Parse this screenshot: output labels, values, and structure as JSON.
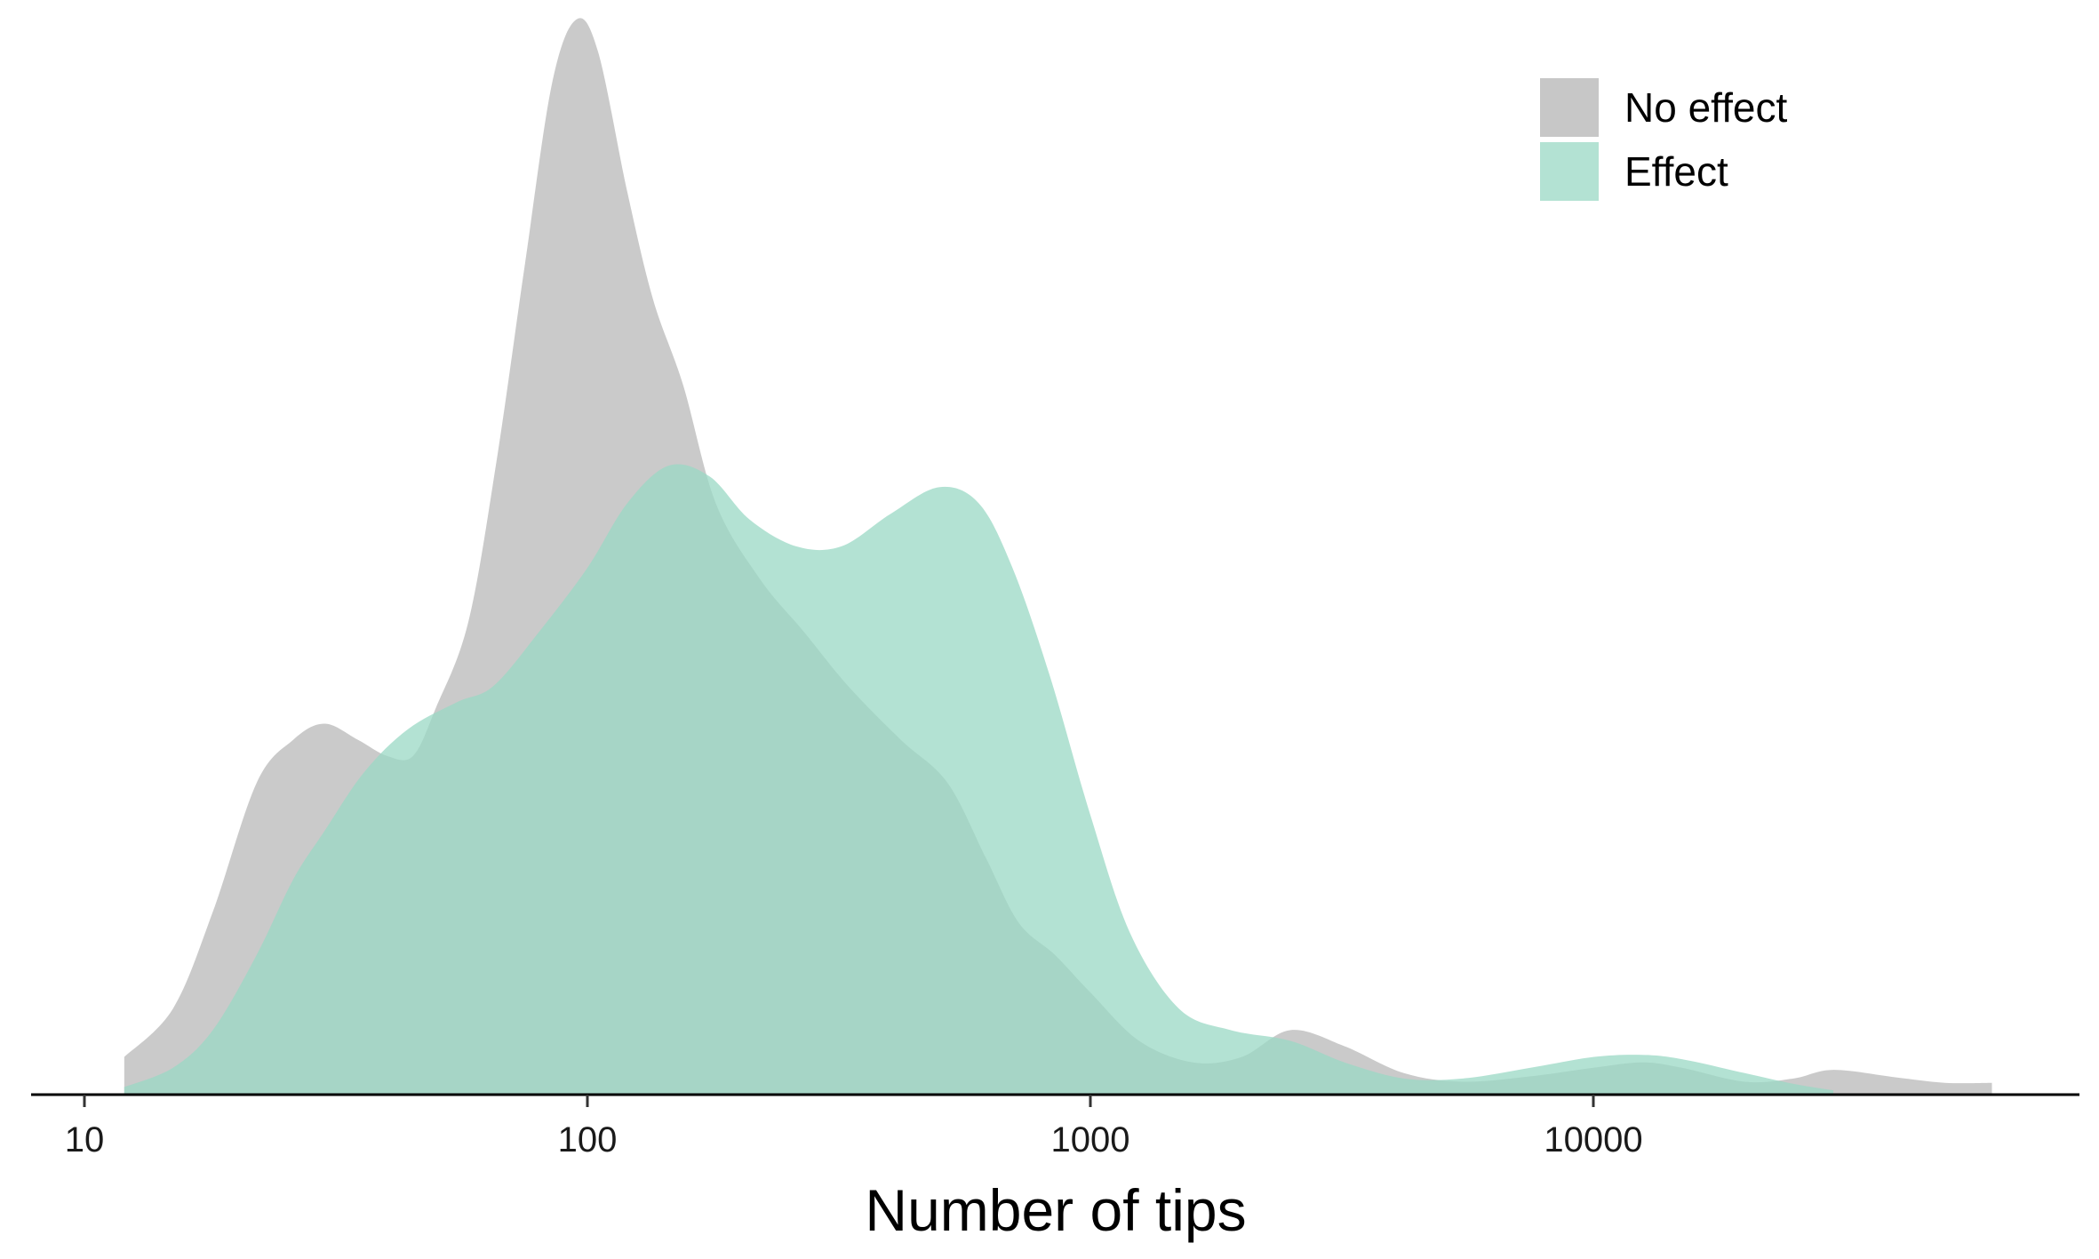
{
  "chart_data": {
    "type": "area",
    "subtype": "density",
    "x_scale": "log10",
    "xlabel": "Number of tips",
    "ylabel": "",
    "xlim": [
      10,
      80000
    ],
    "x_ticks": [
      10,
      100,
      1000,
      10000
    ],
    "x_tick_labels": [
      "10",
      "100",
      "1000",
      "10000"
    ],
    "y_axis_visible": false,
    "grid": false,
    "legend_position": "top-right",
    "series": [
      {
        "name": "No effect",
        "color": "#c7c7c7",
        "points": [
          [
            12,
            0.035
          ],
          [
            15,
            0.08
          ],
          [
            18,
            0.17
          ],
          [
            22,
            0.29
          ],
          [
            26,
            0.33
          ],
          [
            30,
            0.345
          ],
          [
            35,
            0.33
          ],
          [
            40,
            0.315
          ],
          [
            45,
            0.315
          ],
          [
            50,
            0.36
          ],
          [
            58,
            0.44
          ],
          [
            66,
            0.59
          ],
          [
            75,
            0.77
          ],
          [
            85,
            0.94
          ],
          [
            95,
            1.0
          ],
          [
            105,
            0.97
          ],
          [
            120,
            0.84
          ],
          [
            135,
            0.74
          ],
          [
            155,
            0.66
          ],
          [
            180,
            0.55
          ],
          [
            220,
            0.48
          ],
          [
            270,
            0.43
          ],
          [
            330,
            0.38
          ],
          [
            420,
            0.33
          ],
          [
            520,
            0.29
          ],
          [
            620,
            0.22
          ],
          [
            720,
            0.16
          ],
          [
            850,
            0.13
          ],
          [
            1000,
            0.095
          ],
          [
            1250,
            0.05
          ],
          [
            1600,
            0.03
          ],
          [
            2000,
            0.035
          ],
          [
            2500,
            0.06
          ],
          [
            3200,
            0.045
          ],
          [
            4200,
            0.02
          ],
          [
            5500,
            0.012
          ],
          [
            7500,
            0.017
          ],
          [
            10000,
            0.025
          ],
          [
            12500,
            0.03
          ],
          [
            15000,
            0.025
          ],
          [
            20000,
            0.012
          ],
          [
            25000,
            0.015
          ],
          [
            30000,
            0.023
          ],
          [
            40000,
            0.016
          ],
          [
            50000,
            0.011
          ],
          [
            62000,
            0.011
          ]
        ]
      },
      {
        "name": "Effect",
        "color": "#9ad8c4",
        "points": [
          [
            12,
            0.007
          ],
          [
            15,
            0.025
          ],
          [
            18,
            0.06
          ],
          [
            22,
            0.13
          ],
          [
            26,
            0.2
          ],
          [
            30,
            0.245
          ],
          [
            36,
            0.3
          ],
          [
            44,
            0.34
          ],
          [
            55,
            0.365
          ],
          [
            65,
            0.38
          ],
          [
            80,
            0.43
          ],
          [
            100,
            0.49
          ],
          [
            120,
            0.55
          ],
          [
            145,
            0.585
          ],
          [
            175,
            0.575
          ],
          [
            210,
            0.535
          ],
          [
            260,
            0.51
          ],
          [
            320,
            0.51
          ],
          [
            400,
            0.54
          ],
          [
            500,
            0.565
          ],
          [
            600,
            0.55
          ],
          [
            700,
            0.49
          ],
          [
            830,
            0.39
          ],
          [
            1000,
            0.26
          ],
          [
            1200,
            0.15
          ],
          [
            1500,
            0.08
          ],
          [
            1900,
            0.06
          ],
          [
            2500,
            0.05
          ],
          [
            3200,
            0.03
          ],
          [
            4200,
            0.015
          ],
          [
            5500,
            0.015
          ],
          [
            7500,
            0.025
          ],
          [
            10000,
            0.035
          ],
          [
            12500,
            0.037
          ],
          [
            15000,
            0.033
          ],
          [
            20000,
            0.02
          ],
          [
            25000,
            0.01
          ],
          [
            30000,
            0.004
          ]
        ]
      }
    ]
  }
}
